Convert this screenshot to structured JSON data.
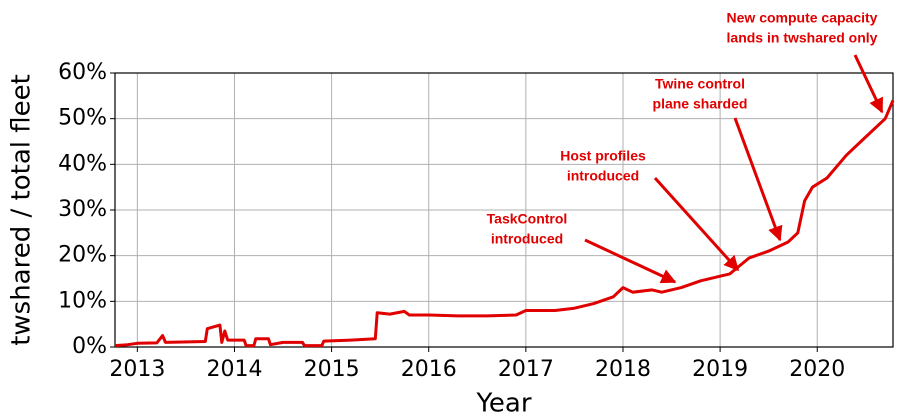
{
  "chart_data": {
    "type": "line",
    "xlabel": "Year",
    "ylabel": "twshared / total fleet",
    "x": [
      2012.77,
      2012.9,
      2013.0,
      2013.2,
      2013.26,
      2013.29,
      2013.7,
      2013.72,
      2013.85,
      2013.87,
      2013.9,
      2013.93,
      2014.1,
      2014.12,
      2014.2,
      2014.22,
      2014.35,
      2014.37,
      2014.5,
      2014.7,
      2014.72,
      2014.9,
      2014.92,
      2015.2,
      2015.45,
      2015.47,
      2015.6,
      2015.75,
      2015.8,
      2016.0,
      2016.3,
      2016.6,
      2016.9,
      2017.0,
      2017.3,
      2017.5,
      2017.7,
      2017.9,
      2018.0,
      2018.1,
      2018.3,
      2018.4,
      2018.6,
      2018.8,
      2019.0,
      2019.1,
      2019.3,
      2019.5,
      2019.7,
      2019.8,
      2019.87,
      2019.95,
      2020.1,
      2020.3,
      2020.5,
      2020.7,
      2020.78
    ],
    "values": [
      0.3,
      0.5,
      0.8,
      0.9,
      2.5,
      1.0,
      1.2,
      4.0,
      4.8,
      1.0,
      3.5,
      1.5,
      1.5,
      0.3,
      0.3,
      1.8,
      1.8,
      0.5,
      1.0,
      1.0,
      0.3,
      0.3,
      1.3,
      1.5,
      1.8,
      7.5,
      7.2,
      7.8,
      7.0,
      7.0,
      6.8,
      6.8,
      7.0,
      8.0,
      8.0,
      8.5,
      9.5,
      11.0,
      13.0,
      12.0,
      12.5,
      12.0,
      13.0,
      14.5,
      15.5,
      16.0,
      19.5,
      21.0,
      23.0,
      25.0,
      32.0,
      35.0,
      37.0,
      42.0,
      46.0,
      50.0,
      54.0
    ],
    "color": "#e00000",
    "xlim": [
      2012.77,
      2020.78
    ],
    "xticks": [
      2013,
      2014,
      2015,
      2016,
      2017,
      2018,
      2019,
      2020
    ],
    "ylim": [
      0,
      60
    ],
    "yticks": [
      {
        "value": 0,
        "label": "0%"
      },
      {
        "value": 10,
        "label": "10%"
      },
      {
        "value": 20,
        "label": "20%"
      },
      {
        "value": 30,
        "label": "30%"
      },
      {
        "value": 40,
        "label": "40%"
      },
      {
        "value": 50,
        "label": "50%"
      },
      {
        "value": 60,
        "label": "60%"
      }
    ],
    "grid": true,
    "annotations": [
      {
        "lines": [
          "TaskControl",
          "introduced"
        ]
      },
      {
        "lines": [
          "Host profiles",
          "introduced"
        ]
      },
      {
        "lines": [
          "Twine control",
          "plane sharded"
        ]
      },
      {
        "lines": [
          "New compute capacity",
          "lands in twshared only"
        ]
      }
    ]
  }
}
